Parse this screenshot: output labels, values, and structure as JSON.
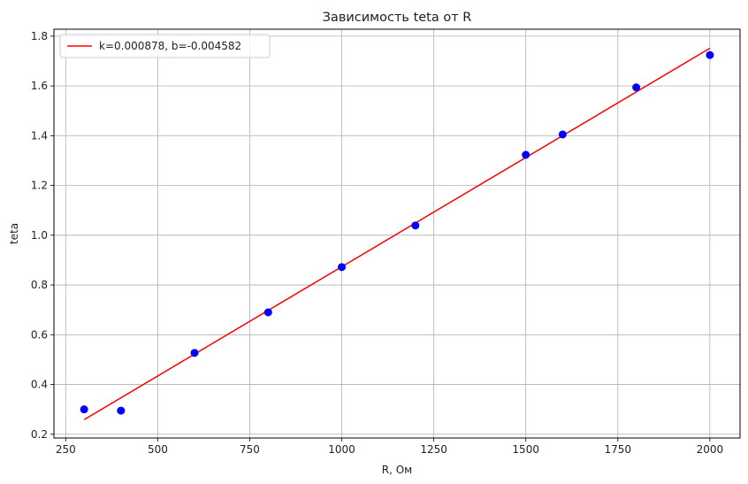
{
  "chart_data": {
    "type": "scatter",
    "title": "Зависимость teta от R",
    "xlabel": "R, Ом",
    "ylabel": "teta",
    "xlim": [
      218,
      2082
    ],
    "ylim": [
      0.185,
      1.828
    ],
    "xticks": [
      250,
      500,
      750,
      1000,
      1250,
      1500,
      1750,
      2000
    ],
    "xtick_labels": [
      "250",
      "500",
      "750",
      "1000",
      "1250",
      "1500",
      "1750",
      "2000"
    ],
    "yticks": [
      0.2,
      0.4,
      0.6,
      0.8,
      1.0,
      1.2,
      1.4,
      1.6,
      1.8
    ],
    "ytick_labels": [
      "0.2",
      "0.4",
      "0.6",
      "0.8",
      "1.0",
      "1.2",
      "1.4",
      "1.6",
      "1.8"
    ],
    "grid": true,
    "legend_position": "top-left",
    "points": {
      "x": [
        300,
        400,
        600,
        800,
        1000,
        1200,
        1500,
        1600,
        1800,
        2000
      ],
      "y": [
        0.3,
        0.295,
        0.527,
        0.69,
        0.872,
        1.039,
        1.323,
        1.405,
        1.594,
        1.724
      ],
      "color": "#0000ff"
    },
    "fit_line": {
      "name": "k=0.000878, b=-0.004582",
      "k": 0.000878,
      "b": -0.004582,
      "x_range": [
        300,
        2000
      ],
      "color": "#ff0000"
    }
  }
}
